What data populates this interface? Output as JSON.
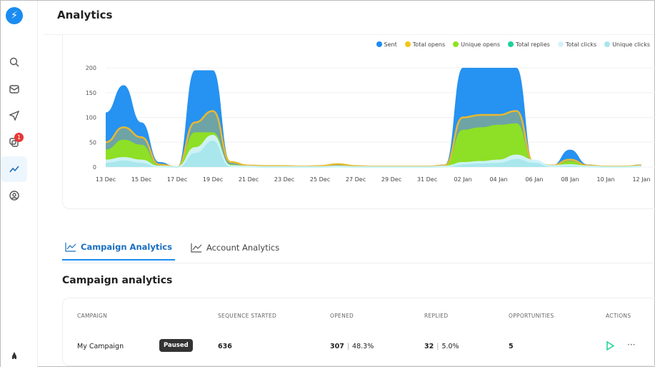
{
  "header": {
    "title": "Analytics"
  },
  "sidebar": {
    "items": [
      {
        "icon": "search-icon"
      },
      {
        "icon": "mail-icon"
      },
      {
        "icon": "send-icon"
      },
      {
        "icon": "copy-icon",
        "badge": "1"
      },
      {
        "icon": "analytics-icon",
        "active": true
      },
      {
        "icon": "user-circle-icon"
      }
    ],
    "bottom_icon": "rocket-icon"
  },
  "chart_data": {
    "type": "area",
    "x": [
      "13 Dec",
      "14 Dec",
      "15 Dec",
      "16 Dec",
      "17 Dec",
      "18 Dec",
      "19 Dec",
      "20 Dec",
      "21 Dec",
      "22 Dec",
      "23 Dec",
      "24 Dec",
      "25 Dec",
      "26 Dec",
      "27 Dec",
      "28 Dec",
      "29 Dec",
      "30 Dec",
      "31 Dec",
      "01 Jan",
      "02 Jan",
      "03 Jan",
      "04 Jan",
      "05 Jan",
      "06 Jan",
      "07 Jan",
      "08 Jan",
      "09 Jan",
      "10 Jan",
      "11 Jan",
      "12 Jan"
    ],
    "xticks": [
      "13 Dec",
      "15 Dec",
      "17 Dec",
      "19 Dec",
      "21 Dec",
      "23 Dec",
      "25 Dec",
      "27 Dec",
      "29 Dec",
      "31 Dec",
      "02 Jan",
      "04 Jan",
      "06 Jan",
      "08 Jan",
      "10 Jan",
      "12 Jan"
    ],
    "yticks": [
      0,
      50,
      100,
      150,
      200
    ],
    "ylim": [
      0,
      200
    ],
    "legend": "top-right",
    "grid": true,
    "series": [
      {
        "name": "Sent",
        "color": "#1a8cf0",
        "values": [
          110,
          165,
          90,
          10,
          0,
          195,
          195,
          10,
          3,
          2,
          2,
          2,
          2,
          5,
          2,
          2,
          2,
          2,
          2,
          5,
          200,
          200,
          200,
          200,
          5,
          3,
          35,
          5,
          2,
          2,
          5
        ]
      },
      {
        "name": "Total opens",
        "color": "#f5c518",
        "values": [
          50,
          80,
          60,
          5,
          0,
          90,
          113,
          10,
          3,
          2,
          2,
          1,
          2,
          6,
          2,
          1,
          1,
          1,
          1,
          3,
          100,
          105,
          105,
          113,
          8,
          3,
          15,
          3,
          1,
          1,
          3
        ]
      },
      {
        "name": "Unique opens",
        "color": "#8ee41d",
        "values": [
          35,
          55,
          45,
          3,
          0,
          70,
          70,
          5,
          2,
          1,
          1,
          1,
          1,
          3,
          1,
          1,
          1,
          1,
          1,
          2,
          75,
          80,
          85,
          88,
          5,
          2,
          12,
          2,
          1,
          1,
          2
        ]
      },
      {
        "name": "Total replies",
        "color": "#1fcf9a",
        "values": [
          2,
          3,
          2,
          0,
          0,
          3,
          4,
          1,
          0,
          0,
          0,
          0,
          0,
          0,
          0,
          0,
          0,
          0,
          0,
          0,
          3,
          4,
          4,
          5,
          1,
          0,
          1,
          0,
          0,
          0,
          0
        ]
      },
      {
        "name": "Total clicks",
        "color": "#d6f1fb",
        "values": [
          15,
          20,
          15,
          2,
          0,
          40,
          65,
          3,
          1,
          1,
          1,
          1,
          1,
          1,
          1,
          1,
          1,
          1,
          1,
          1,
          10,
          12,
          15,
          25,
          15,
          3,
          5,
          1,
          1,
          1,
          1
        ]
      },
      {
        "name": "Unique clicks",
        "color": "#a7e6ec",
        "values": [
          10,
          15,
          10,
          1,
          0,
          30,
          55,
          2,
          1,
          0,
          0,
          0,
          0,
          1,
          0,
          0,
          0,
          0,
          0,
          1,
          7,
          9,
          10,
          18,
          10,
          2,
          4,
          1,
          0,
          0,
          1
        ]
      }
    ]
  },
  "tabs": [
    {
      "label": "Campaign Analytics",
      "active": true
    },
    {
      "label": "Account Analytics"
    }
  ],
  "section_title": "Campaign analytics",
  "table": {
    "headers": [
      "CAMPAIGN",
      "SEQUENCE STARTED",
      "OPENED",
      "REPLIED",
      "OPPORTUNITIES",
      "ACTIONS"
    ],
    "rows": [
      {
        "campaign": "My Campaign",
        "status": "Paused",
        "sequence_started": "636",
        "opened": "307",
        "opened_pct": "48.3%",
        "replied": "32",
        "replied_pct": "5.0%",
        "opportunities": "5"
      }
    ]
  }
}
